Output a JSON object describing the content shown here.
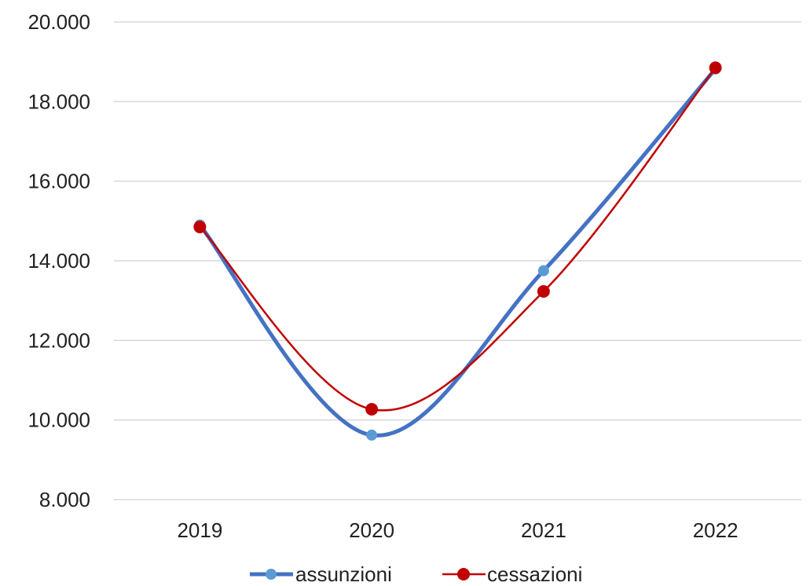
{
  "chart_data": {
    "type": "line",
    "categories": [
      "2019",
      "2020",
      "2021",
      "2022"
    ],
    "series": [
      {
        "name": "assunzioni",
        "values": [
          14900,
          9620,
          13750,
          18820
        ],
        "color": "#4472C4",
        "marker_color": "#5B9BD5"
      },
      {
        "name": "cessazioni",
        "values": [
          14850,
          10270,
          13230,
          18850
        ],
        "color": "#C00000",
        "marker_color": "#C00000"
      }
    ],
    "ylim": [
      8000,
      20000
    ],
    "y_ticks": [
      8000,
      10000,
      12000,
      14000,
      16000,
      18000,
      20000
    ],
    "y_tick_labels": [
      "8.000",
      "10.000",
      "12.000",
      "14.000",
      "16.000",
      "18.000",
      "20.000"
    ],
    "grid": true,
    "smooth": true,
    "legend_position": "bottom",
    "title": "",
    "xlabel": "",
    "ylabel": ""
  }
}
